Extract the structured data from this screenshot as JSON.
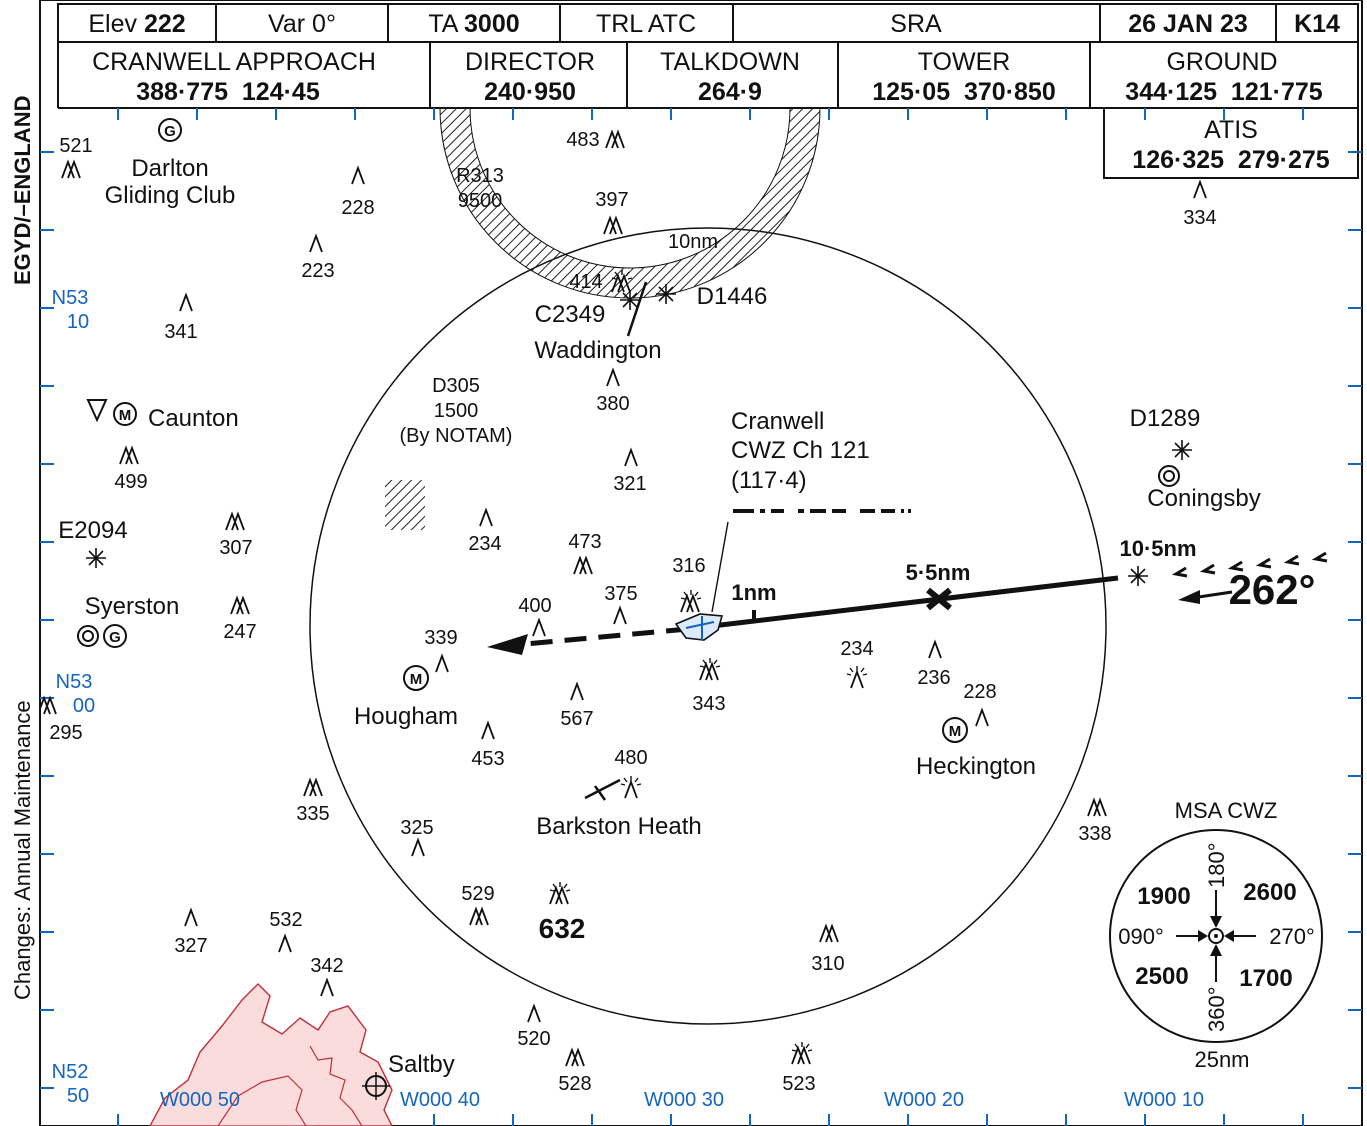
{
  "header": {
    "elev_label": "Elev",
    "elev_value": "222",
    "var": "Var 0°",
    "ta_label": "TA",
    "ta_value": "3000",
    "trl": "TRL ATC",
    "sra": "SRA",
    "date": "26 JAN 23",
    "amdt": "K14"
  },
  "frequencies": [
    {
      "name": "CRANWELL APPROACH",
      "freqs": "388·775  124·45"
    },
    {
      "name": "DIRECTOR",
      "freqs": "240·950"
    },
    {
      "name": "TALKDOWN",
      "freqs": "264·9"
    },
    {
      "name": "TOWER",
      "freqs": "125·05  370·850"
    },
    {
      "name": "GROUND",
      "freqs": "344·125  121·775"
    }
  ],
  "atis": {
    "name": "ATIS",
    "freqs": "126·325  279·275"
  },
  "side_labels": {
    "aerodrome": "EGYD/–ENGLAND",
    "changes": "Changes: Annual Maintenance"
  },
  "grid_labels": {
    "lat": [
      [
        "N53",
        "10"
      ],
      [
        "N53",
        "00"
      ],
      [
        "N52",
        "50"
      ]
    ],
    "lon": [
      "W000 50",
      "W000 40",
      "W000 30",
      "W000 20",
      "W000 10"
    ]
  },
  "places": [
    "Darlton",
    "Gliding Club",
    "Caunton",
    "Syerston",
    "Hougham",
    "Waddington",
    "Barkston Heath",
    "Heckington",
    "Coningsby",
    "Saltby"
  ],
  "areas": {
    "r313": [
      "R313",
      "9500"
    ],
    "d305": [
      "D305",
      "1500",
      "(By NOTAM)"
    ],
    "c2349": "C2349",
    "d1446": "D1446",
    "d1289": "D1289",
    "e2094": "E2094"
  },
  "navaid": {
    "lines": [
      "Cranwell",
      "CWZ Ch 121",
      "(117·4)"
    ]
  },
  "approach": {
    "ring": "10nm",
    "d1": "1nm",
    "d55": "5·5nm",
    "d105": "10·5nm",
    "track": "262°"
  },
  "obstacles": [
    "521",
    "228",
    "223",
    "341",
    "483",
    "397",
    "414",
    "380",
    "321",
    "499",
    "307",
    "234",
    "473",
    "316",
    "375",
    "400",
    "339",
    "247",
    "295",
    "567",
    "343",
    "234",
    "236",
    "228",
    "453",
    "480",
    "335",
    "325",
    "529",
    "632",
    "327",
    "532",
    "342",
    "520",
    "528",
    "523",
    "310",
    "338",
    "334"
  ],
  "msa": {
    "title": "MSA CWZ",
    "radius": "25nm",
    "alt_nw": "1900",
    "alt_ne": "2600",
    "alt_sw": "2500",
    "alt_se": "1700",
    "b_180": "180°",
    "b_360": "360°",
    "b_090": "090°",
    "b_270": "270°"
  },
  "colors": {
    "grid_blue": "#1565c0",
    "terrain_fill": "#fbdcdc",
    "terrain_line": "#c0303a",
    "ink": "#111111"
  }
}
